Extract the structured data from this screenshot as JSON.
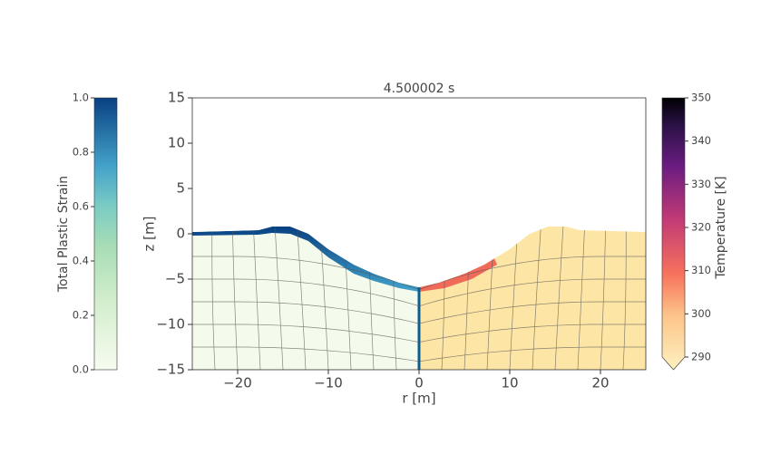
{
  "chart_data": {
    "type": "field",
    "title": "4.500002 s",
    "xlabel": "r [m]",
    "ylabel": "z [m]",
    "xlim": [
      -25,
      25
    ],
    "ylim": [
      -15,
      15
    ],
    "xticks": [
      {
        "value": -20,
        "label": "−20"
      },
      {
        "value": -10,
        "label": "−10"
      },
      0,
      10,
      20
    ],
    "yticks": [
      {
        "value": -15,
        "label": "−15"
      },
      {
        "value": -10,
        "label": "−10"
      },
      {
        "value": -5,
        "label": "−5"
      },
      0,
      5,
      10,
      15
    ],
    "colorbars": [
      {
        "label": "Total Plastic Strain",
        "lim": [
          0,
          1
        ],
        "ticks": [
          {
            "value": 0,
            "label": "0.0"
          },
          {
            "value": 0.2,
            "label": "0.2"
          },
          {
            "value": 0.4,
            "label": "0.4"
          },
          {
            "value": 0.6,
            "label": "0.6"
          },
          {
            "value": 0.8,
            "label": "0.8"
          },
          {
            "value": 1,
            "label": "1.0"
          }
        ]
      },
      {
        "label": "Temperature [K]",
        "lim": [
          290,
          350
        ],
        "ticks": [
          290,
          300,
          310,
          320,
          330,
          340,
          350
        ]
      }
    ]
  }
}
